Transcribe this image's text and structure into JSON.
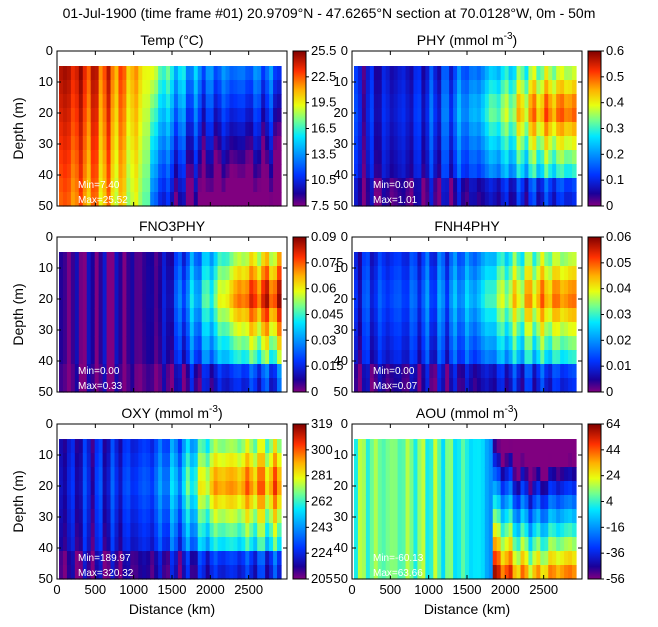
{
  "chart_data": {
    "type": "heatmap",
    "title": "01-Jul-1900 (time frame #01) 20.9709°N - 47.6265°N section at 70.0128°W, 0m - 50m",
    "xlabel": "Distance (km)",
    "ylabel": "Depth (m)",
    "xlim": [
      0,
      3000
    ],
    "x_ticks": [
      "0",
      "500",
      "1000",
      "1500",
      "2000",
      "2500"
    ],
    "ylim": [
      50,
      0
    ],
    "y_ticks": [
      "0",
      "10",
      "20",
      "30",
      "40",
      "50"
    ],
    "panels": [
      {
        "title_main": "Temp (°C)",
        "title_sup": "",
        "title_end": "",
        "min_label": "Min=7.40",
        "max_label": "Max=25.52",
        "colorbar_ticks": [
          "25.5",
          "22.5",
          "19.5",
          "16.5",
          "13.5",
          "10.5",
          "7.5"
        ],
        "range": [
          7.5,
          25.5
        ],
        "profile": [
          [
            0,
            0.95
          ],
          [
            200,
            0.93
          ],
          [
            400,
            0.9
          ],
          [
            600,
            0.86
          ],
          [
            800,
            0.8
          ],
          [
            1000,
            0.74
          ],
          [
            1200,
            0.64
          ],
          [
            1400,
            0.5
          ],
          [
            1600,
            0.4
          ],
          [
            1800,
            0.33
          ],
          [
            2000,
            0.28
          ],
          [
            2200,
            0.3
          ],
          [
            2400,
            0.27
          ],
          [
            2600,
            0.29
          ],
          [
            2800,
            0.26
          ],
          [
            2950,
            0.25
          ]
        ]
      },
      {
        "title_main": "PHY (mmol m",
        "title_sup": "-3",
        "title_end": ")",
        "min_label": "Min=0.00",
        "max_label": "Max=1.01",
        "colorbar_ticks": [
          "0.6",
          "0.5",
          "0.4",
          "0.3",
          "0.2",
          "0.1",
          "0"
        ],
        "range": [
          0,
          0.6
        ],
        "profile": [
          [
            0,
            0.1
          ],
          [
            400,
            0.1
          ],
          [
            800,
            0.12
          ],
          [
            1200,
            0.2
          ],
          [
            1600,
            0.38
          ],
          [
            1800,
            0.55
          ],
          [
            2000,
            0.6
          ],
          [
            2200,
            0.72
          ],
          [
            2400,
            0.8
          ],
          [
            2600,
            0.82
          ],
          [
            2800,
            0.84
          ],
          [
            2950,
            0.86
          ]
        ]
      },
      {
        "title_main": "FNO3PHY",
        "title_sup": "",
        "title_end": "",
        "min_label": "Min=0.00",
        "max_label": "Max=0.33",
        "colorbar_ticks": [
          "0.09",
          "0.075",
          "0.06",
          "0.045",
          "0.03",
          "0.015",
          "0"
        ],
        "range": [
          0,
          0.09
        ],
        "profile": [
          [
            0,
            0.0
          ],
          [
            1000,
            0.0
          ],
          [
            1400,
            0.05
          ],
          [
            1600,
            0.3
          ],
          [
            1800,
            0.42
          ],
          [
            2000,
            0.55
          ],
          [
            2200,
            0.72
          ],
          [
            2400,
            0.85
          ],
          [
            2600,
            0.9
          ],
          [
            2800,
            0.92
          ],
          [
            2950,
            0.9
          ]
        ]
      },
      {
        "title_main": "FNH4PHY",
        "title_sup": "",
        "title_end": "",
        "min_label": "Min=0.00",
        "max_label": "Max=0.07",
        "colorbar_ticks": [
          "0.06",
          "0.05",
          "0.04",
          "0.03",
          "0.02",
          "0.01",
          "0"
        ],
        "range": [
          0,
          0.06
        ],
        "profile": [
          [
            0,
            0.15
          ],
          [
            400,
            0.18
          ],
          [
            800,
            0.2
          ],
          [
            1200,
            0.25
          ],
          [
            1600,
            0.4
          ],
          [
            1800,
            0.55
          ],
          [
            2000,
            0.65
          ],
          [
            2200,
            0.72
          ],
          [
            2400,
            0.78
          ],
          [
            2600,
            0.8
          ],
          [
            2800,
            0.82
          ],
          [
            2950,
            0.8
          ]
        ]
      },
      {
        "title_main": "OXY (mmol m",
        "title_sup": "-3",
        "title_end": ")",
        "min_label": "Min=189.97",
        "max_label": "Max=320.32",
        "colorbar_ticks": [
          "319",
          "300",
          "281",
          "262",
          "243",
          "224",
          "205"
        ],
        "range": [
          205,
          319
        ],
        "profile": [
          [
            0,
            0.08
          ],
          [
            400,
            0.12
          ],
          [
            800,
            0.15
          ],
          [
            1200,
            0.2
          ],
          [
            1500,
            0.35
          ],
          [
            1700,
            0.5
          ],
          [
            1900,
            0.68
          ],
          [
            2100,
            0.8
          ],
          [
            2300,
            0.78
          ],
          [
            2500,
            0.82
          ],
          [
            2700,
            0.8
          ],
          [
            2950,
            0.82
          ]
        ]
      },
      {
        "title_main": "AOU (mmol m",
        "title_sup": "-3",
        "title_end": ")",
        "min_label": "Min=-60.13",
        "max_label": "Max=63.66",
        "colorbar_ticks": [
          "64",
          "44",
          "24",
          "4",
          "-16",
          "-36",
          "-56"
        ],
        "range": [
          -56,
          64
        ],
        "profile": [
          [
            0,
            0.55
          ],
          [
            400,
            0.55
          ],
          [
            800,
            0.55
          ],
          [
            1200,
            0.52
          ],
          [
            1600,
            0.45
          ],
          [
            1800,
            0.35
          ],
          [
            2000,
            0.25
          ],
          [
            2200,
            0.15
          ],
          [
            2400,
            0.12
          ],
          [
            2600,
            0.18
          ],
          [
            2800,
            0.2
          ],
          [
            2950,
            0.22
          ]
        ]
      }
    ]
  }
}
